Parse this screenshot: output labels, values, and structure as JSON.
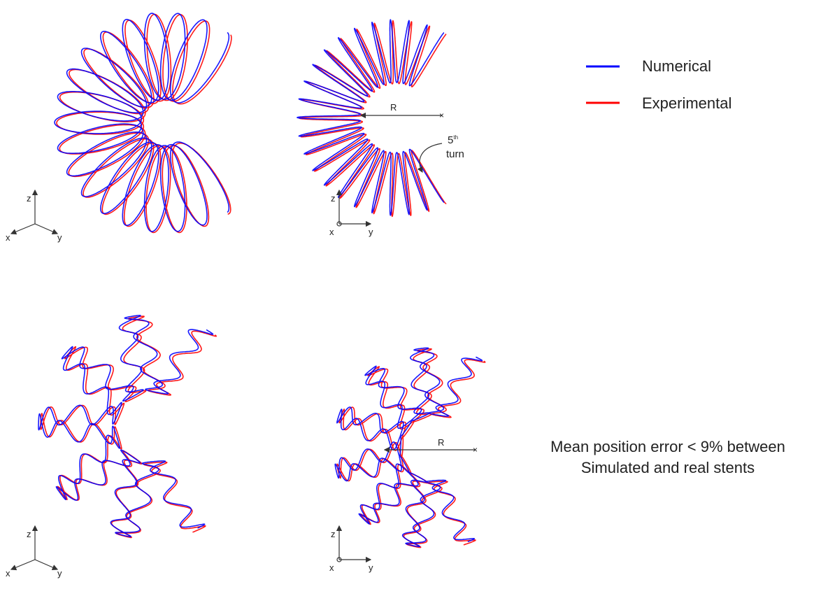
{
  "legend": {
    "items": [
      {
        "label": "Numerical",
        "color": "#0000ff"
      },
      {
        "label": "Experimental",
        "color": "#ff0000"
      }
    ]
  },
  "panels": [
    {
      "axes": {
        "up": "z",
        "left": "x",
        "right": "y"
      }
    },
    {
      "axes": {
        "up": "z",
        "left": "x",
        "right": "y"
      },
      "radius_label": "R",
      "turn_label": {
        "number": "5",
        "suffix": "th",
        "word": "turn"
      }
    },
    {
      "axes": {
        "up": "z",
        "left": "x",
        "right": "y"
      }
    },
    {
      "axes": {
        "up": "z",
        "left": "x",
        "right": "y"
      },
      "radius_label": "R"
    }
  ],
  "note": {
    "lines": [
      "Mean position error < 9% between",
      "Simulated and real stents"
    ]
  }
}
